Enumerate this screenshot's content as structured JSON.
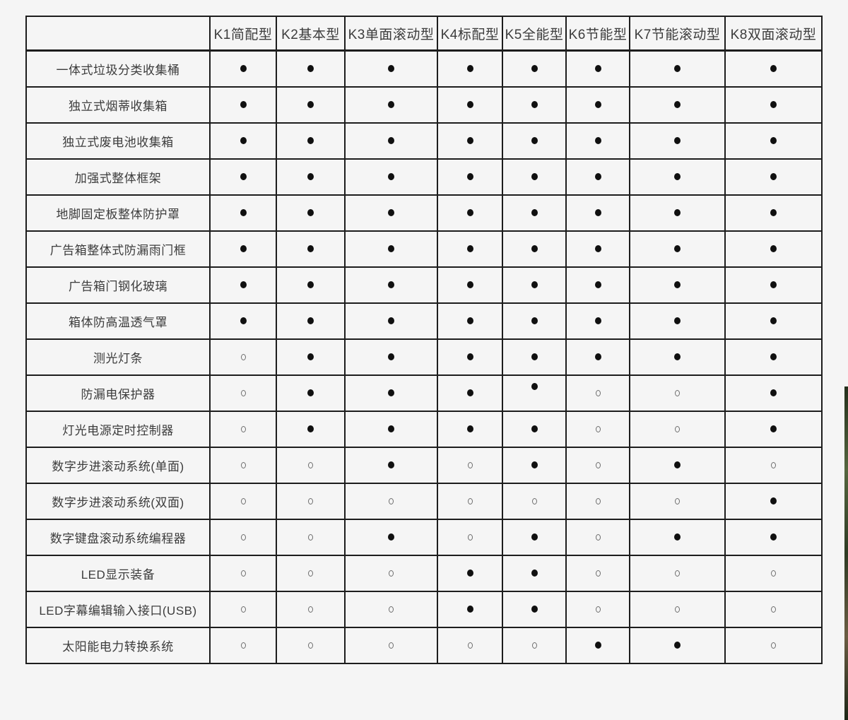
{
  "page": {
    "background_color": "#f5f5f5",
    "table_border_color": "#1d1d1d"
  },
  "legend": {
    "included_symbol": "●",
    "excluded_symbol": "○"
  },
  "table": {
    "corner_label": "",
    "columns": [
      {
        "id": "k1",
        "label": "K1简配型"
      },
      {
        "id": "k2",
        "label": "K2基本型"
      },
      {
        "id": "k3",
        "label": "K3单面滚动型"
      },
      {
        "id": "k4",
        "label": "K4标配型"
      },
      {
        "id": "k5",
        "label": "K5全能型"
      },
      {
        "id": "k6",
        "label": "K6节能型"
      },
      {
        "id": "k7",
        "label": "K7节能滚动型"
      },
      {
        "id": "k8",
        "label": "K8双面滚动型"
      }
    ],
    "rows": [
      {
        "label": "一体式垃圾分类收集桶",
        "values": [
          1,
          1,
          1,
          1,
          1,
          1,
          1,
          1
        ]
      },
      {
        "label": "独立式烟蒂收集箱",
        "values": [
          1,
          1,
          1,
          1,
          1,
          1,
          1,
          1
        ]
      },
      {
        "label": "独立式废电池收集箱",
        "values": [
          1,
          1,
          1,
          1,
          1,
          1,
          1,
          1
        ]
      },
      {
        "label": "加强式整体框架",
        "values": [
          1,
          1,
          1,
          1,
          1,
          1,
          1,
          1
        ]
      },
      {
        "label": "地脚固定板整体防护罩",
        "values": [
          1,
          1,
          1,
          1,
          1,
          1,
          1,
          1
        ]
      },
      {
        "label": "广告箱整体式防漏雨门框",
        "values": [
          1,
          1,
          1,
          1,
          1,
          1,
          1,
          1
        ]
      },
      {
        "label": "广告箱门钢化玻璃",
        "values": [
          1,
          1,
          1,
          1,
          1,
          1,
          1,
          1
        ]
      },
      {
        "label": "箱体防高温透气罩",
        "values": [
          1,
          1,
          1,
          1,
          1,
          1,
          1,
          1
        ]
      },
      {
        "label": "测光灯条",
        "values": [
          0,
          1,
          1,
          1,
          1,
          1,
          1,
          1
        ]
      },
      {
        "label": "防漏电保护器",
        "values": [
          0,
          1,
          1,
          1,
          1,
          0,
          0,
          1
        ]
      },
      {
        "label": "灯光电源定时控制器",
        "values": [
          0,
          1,
          1,
          1,
          1,
          0,
          0,
          1
        ]
      },
      {
        "label": "数字步进滚动系统(单面)",
        "values": [
          0,
          0,
          1,
          0,
          1,
          0,
          1,
          0
        ]
      },
      {
        "label": "数字步进滚动系统(双面)",
        "values": [
          0,
          0,
          0,
          0,
          0,
          0,
          0,
          1
        ]
      },
      {
        "label": "数字键盘滚动系统编程器",
        "values": [
          0,
          0,
          1,
          0,
          1,
          0,
          1,
          1
        ]
      },
      {
        "label": "LED显示装备",
        "values": [
          0,
          0,
          0,
          1,
          1,
          0,
          0,
          0
        ]
      },
      {
        "label": "LED字幕编辑输入接口(USB)",
        "values": [
          0,
          0,
          0,
          1,
          1,
          0,
          0,
          0
        ]
      },
      {
        "label": "太阳能电力转换系统",
        "values": [
          0,
          0,
          0,
          0,
          0,
          1,
          1,
          0
        ]
      }
    ],
    "raised_dot_cell": {
      "row": 9,
      "col": 4
    }
  },
  "artifact": {
    "name": "adjacent-image-edge",
    "colors": [
      "#24301c",
      "#55663f",
      "#2e3b24",
      "#6b5d43",
      "#1c2616"
    ]
  }
}
